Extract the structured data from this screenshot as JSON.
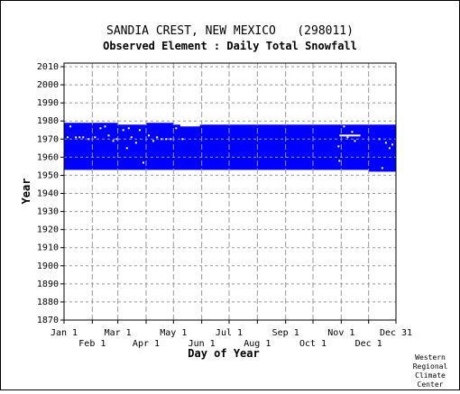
{
  "chart_data": {
    "type": "area",
    "title": "SANDIA CREST, NEW MEXICO   (298011)",
    "subtitle": "Observed Element : Daily Total Snowfall",
    "xlabel": "Day of Year",
    "ylabel": "Year",
    "xlim": [
      1,
      365
    ],
    "ylim": [
      1870,
      2012
    ],
    "x_ticks_top_row": [
      {
        "label": "Jan 1",
        "day": 1
      },
      {
        "label": "Mar 1",
        "day": 60
      },
      {
        "label": "May 1",
        "day": 121
      },
      {
        "label": "Jul 1",
        "day": 182
      },
      {
        "label": "Sep 1",
        "day": 244
      },
      {
        "label": "Nov 1",
        "day": 305
      },
      {
        "label": "Dec 31",
        "day": 365
      }
    ],
    "x_ticks_bottom_row": [
      {
        "label": "Feb 1",
        "day": 32
      },
      {
        "label": "Apr 1",
        "day": 91
      },
      {
        "label": "Jun 1",
        "day": 152
      },
      {
        "label": "Aug 1",
        "day": 213
      },
      {
        "label": "Oct 1",
        "day": 274
      },
      {
        "label": "Dec 1",
        "day": 335
      }
    ],
    "y_ticks": [
      1870,
      1880,
      1890,
      1900,
      1910,
      1920,
      1930,
      1940,
      1950,
      1960,
      1970,
      1980,
      1990,
      2000,
      2010
    ],
    "grid": true,
    "series_color": "#0000ff",
    "coverage_segments": [
      {
        "day_start": 1,
        "day_end": 30,
        "year_start": 1953,
        "year_end": 1979
      },
      {
        "day_start": 30,
        "day_end": 60,
        "year_start": 1953,
        "year_end": 1979
      },
      {
        "day_start": 60,
        "day_end": 91,
        "year_start": 1953,
        "year_end": 1978
      },
      {
        "day_start": 91,
        "day_end": 121,
        "year_start": 1953,
        "year_end": 1979
      },
      {
        "day_start": 121,
        "day_end": 128,
        "year_start": 1953,
        "year_end": 1978
      },
      {
        "day_start": 128,
        "day_end": 150,
        "year_start": 1953,
        "year_end": 1977
      },
      {
        "day_start": 150,
        "day_end": 305,
        "year_start": 1953,
        "year_end": 1978
      },
      {
        "day_start": 305,
        "day_end": 320,
        "year_start": 1953,
        "year_end": 1978
      },
      {
        "day_start": 320,
        "day_end": 335,
        "year_start": 1953,
        "year_end": 1978
      },
      {
        "day_start": 335,
        "day_end": 345,
        "year_start": 1952,
        "year_end": 1978
      },
      {
        "day_start": 345,
        "day_end": 365,
        "year_start": 1952,
        "year_end": 1978
      }
    ],
    "missing_points": [
      {
        "day": 5,
        "year": 1971
      },
      {
        "day": 8,
        "year": 1977
      },
      {
        "day": 14,
        "year": 1971
      },
      {
        "day": 18,
        "year": 1971
      },
      {
        "day": 22,
        "year": 1971
      },
      {
        "day": 28,
        "year": 1970
      },
      {
        "day": 35,
        "year": 1971
      },
      {
        "day": 41,
        "year": 1976
      },
      {
        "day": 46,
        "year": 1977
      },
      {
        "day": 50,
        "year": 1972
      },
      {
        "day": 55,
        "year": 1969
      },
      {
        "day": 59,
        "year": 1970
      },
      {
        "day": 66,
        "year": 1975
      },
      {
        "day": 70,
        "year": 1965
      },
      {
        "day": 72,
        "year": 1976
      },
      {
        "day": 75,
        "year": 1971
      },
      {
        "day": 80,
        "year": 1968
      },
      {
        "day": 84,
        "year": 1975
      },
      {
        "day": 88,
        "year": 1957
      },
      {
        "day": 94,
        "year": 1972
      },
      {
        "day": 99,
        "year": 1969
      },
      {
        "day": 103,
        "year": 1971
      },
      {
        "day": 108,
        "year": 1970
      },
      {
        "day": 113,
        "year": 1970
      },
      {
        "day": 118,
        "year": 1970
      },
      {
        "day": 124,
        "year": 1976
      },
      {
        "day": 131,
        "year": 1970
      },
      {
        "day": 302,
        "year": 1966
      },
      {
        "day": 303,
        "year": 1958
      },
      {
        "day": 308,
        "year": 1977
      },
      {
        "day": 312,
        "year": 1971
      },
      {
        "day": 317,
        "year": 1974
      },
      {
        "day": 320,
        "year": 1969
      },
      {
        "day": 347,
        "year": 1970
      },
      {
        "day": 350,
        "year": 1954
      },
      {
        "day": 354,
        "year": 1968
      },
      {
        "day": 358,
        "year": 1965
      },
      {
        "day": 361,
        "year": 1967
      }
    ],
    "missing_runs": [
      {
        "day_start": 303,
        "day_end": 326,
        "year": 1972
      }
    ]
  },
  "credit": {
    "line1": "Western",
    "line2": "Regional",
    "line3": "Climate",
    "line4": "Center"
  }
}
